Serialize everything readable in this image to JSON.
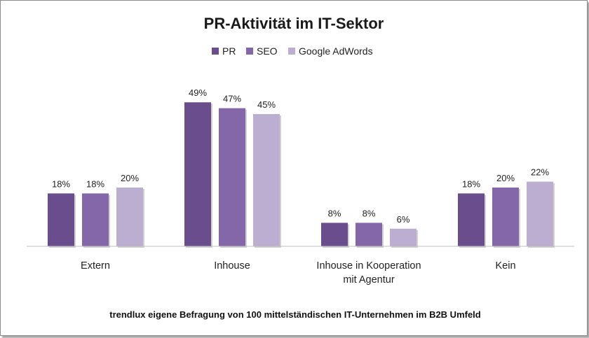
{
  "chart_data": {
    "type": "bar",
    "title": "PR-Aktivität im IT-Sektor",
    "categories": [
      [
        "Extern"
      ],
      [
        "Inhouse"
      ],
      [
        "Inhouse in Kooperation",
        "mit Agentur"
      ],
      [
        "Kein"
      ]
    ],
    "series": [
      {
        "name": "PR",
        "values": [
          18,
          49,
          8,
          18
        ],
        "labels": [
          "18%",
          "49%",
          "8%",
          "18%"
        ],
        "color": "#6a4d8c"
      },
      {
        "name": "SEO",
        "values": [
          18,
          47,
          8,
          20
        ],
        "labels": [
          "18%",
          "47%",
          "8%",
          "20%"
        ],
        "color": "#8467a8"
      },
      {
        "name": "Google AdWords",
        "values": [
          20,
          45,
          6,
          22
        ],
        "labels": [
          "20%",
          "45%",
          "6%",
          "22%"
        ],
        "color": "#bbaed0"
      }
    ],
    "ylim": [
      0,
      60
    ],
    "legend": "top",
    "grid": false,
    "caption": "trendlux eigene Befragung von 100 mittelständischen IT-Unternehmen im B2B Umfeld"
  }
}
